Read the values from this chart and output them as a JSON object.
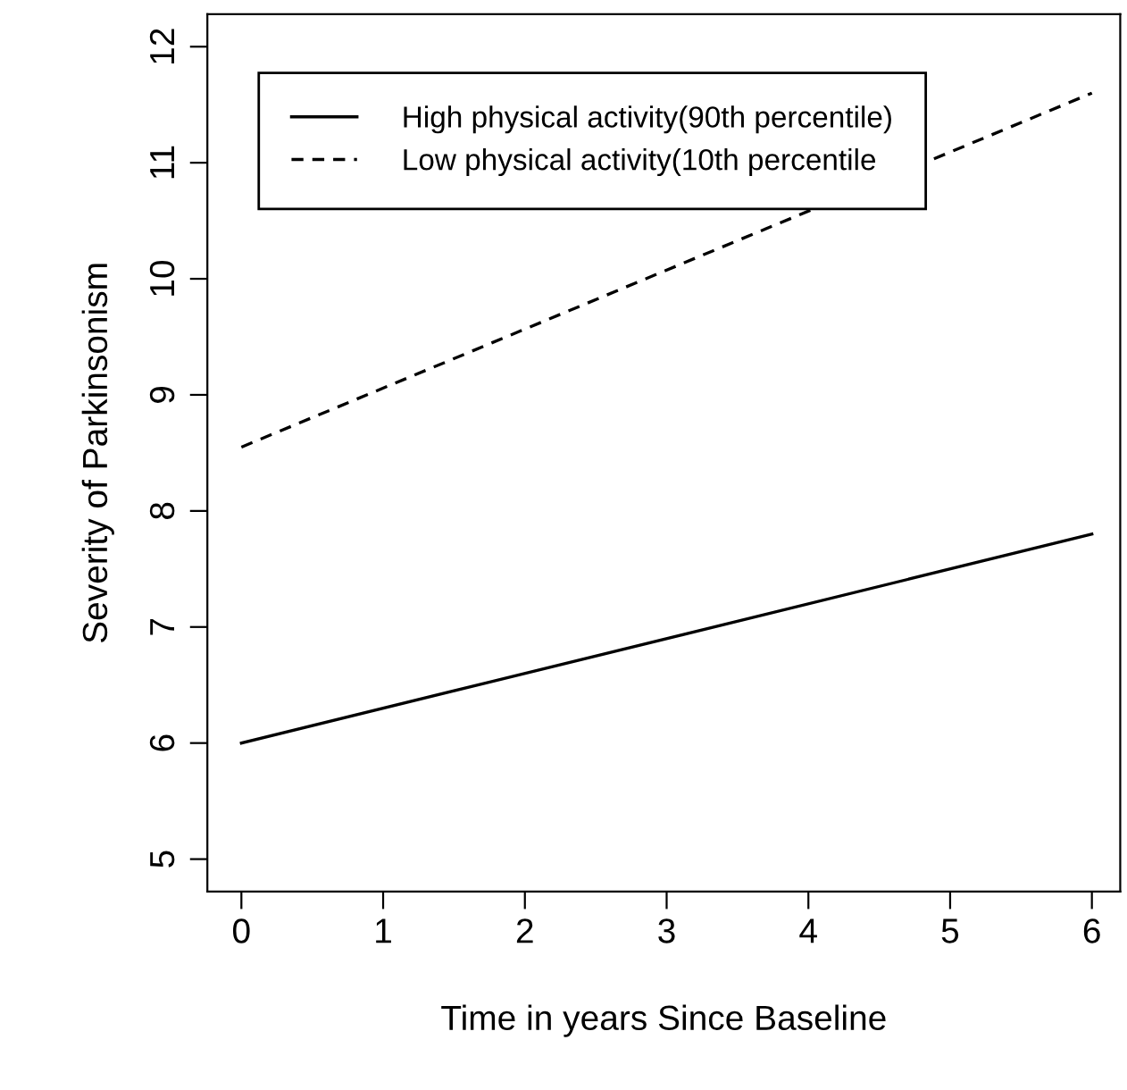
{
  "chart_data": {
    "type": "line",
    "xlabel": "Time in years Since Baseline",
    "ylabel": "Severity of Parkinsonism",
    "x": [
      0,
      6
    ],
    "series": [
      {
        "name": "High physical activity(90th percentile)",
        "color": "#000000",
        "values": [
          6.0,
          7.8
        ],
        "line_style": "solid"
      },
      {
        "name": "Low physical activity(10th percentile",
        "color": "#000000",
        "values": [
          8.55,
          11.6
        ],
        "line_style": "dashed"
      }
    ],
    "xlim": [
      -0.24,
      6.2
    ],
    "ylim": [
      4.72,
      12.28
    ],
    "xticks": [
      0,
      1,
      2,
      3,
      4,
      5,
      6
    ],
    "yticks": [
      5,
      6,
      7,
      8,
      9,
      10,
      11,
      12
    ],
    "legend": "top left",
    "grid": false,
    "marker": "none"
  }
}
